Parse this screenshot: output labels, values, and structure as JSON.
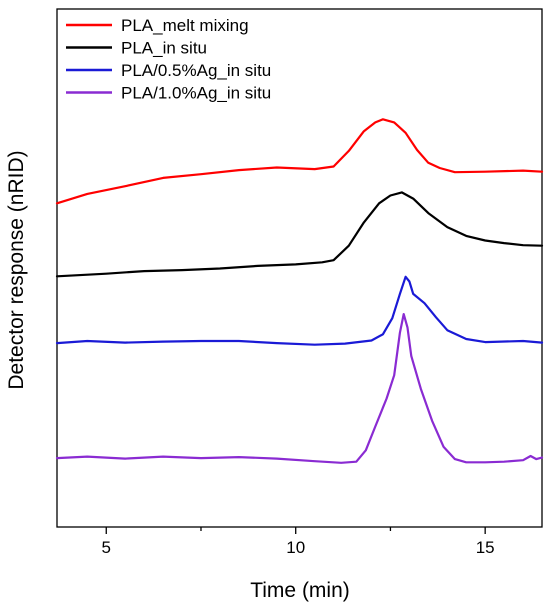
{
  "chart_data": {
    "type": "line",
    "xlabel": "Time (min)",
    "ylabel": "Detector response (nRID)",
    "xlim": [
      3.7,
      16.5
    ],
    "ylim": [
      0,
      100
    ],
    "x_ticks": [
      5,
      10,
      15
    ],
    "x_tick_labels": [
      "5",
      "10",
      "15"
    ],
    "y_ticks_labeled": false,
    "grid": false,
    "legend_position": "top-left",
    "series": [
      {
        "name": "PLA_melt mixing",
        "color": "#ff0000",
        "points": [
          [
            3.7,
            62.5
          ],
          [
            4.5,
            64.3
          ],
          [
            5.5,
            65.8
          ],
          [
            6.5,
            67.4
          ],
          [
            7.5,
            68.1
          ],
          [
            8.5,
            68.9
          ],
          [
            9.5,
            69.4
          ],
          [
            10.5,
            69.1
          ],
          [
            11.0,
            69.6
          ],
          [
            11.4,
            72.6
          ],
          [
            11.8,
            76.4
          ],
          [
            12.1,
            78.1
          ],
          [
            12.3,
            78.7
          ],
          [
            12.6,
            78.1
          ],
          [
            12.9,
            76.1
          ],
          [
            13.2,
            72.8
          ],
          [
            13.5,
            70.3
          ],
          [
            13.8,
            69.3
          ],
          [
            14.2,
            68.5
          ],
          [
            15.0,
            68.6
          ],
          [
            16.0,
            68.8
          ],
          [
            16.5,
            68.6
          ]
        ]
      },
      {
        "name": "PLA_in situ",
        "color": "#000000",
        "points": [
          [
            3.7,
            48.4
          ],
          [
            5.0,
            48.9
          ],
          [
            6.0,
            49.4
          ],
          [
            7.0,
            49.6
          ],
          [
            8.0,
            49.9
          ],
          [
            9.0,
            50.4
          ],
          [
            10.0,
            50.7
          ],
          [
            10.7,
            51.1
          ],
          [
            11.0,
            51.5
          ],
          [
            11.4,
            54.3
          ],
          [
            11.8,
            58.8
          ],
          [
            12.2,
            62.5
          ],
          [
            12.5,
            64.0
          ],
          [
            12.8,
            64.6
          ],
          [
            13.1,
            63.4
          ],
          [
            13.5,
            60.6
          ],
          [
            14.0,
            57.9
          ],
          [
            14.5,
            56.2
          ],
          [
            15.0,
            55.3
          ],
          [
            15.5,
            54.8
          ],
          [
            16.0,
            54.4
          ],
          [
            16.5,
            54.3
          ]
        ]
      },
      {
        "name": "PLA/0.5%Ag_in situ",
        "color": "#1a1ad6",
        "points": [
          [
            3.7,
            35.5
          ],
          [
            4.5,
            35.9
          ],
          [
            5.5,
            35.6
          ],
          [
            6.5,
            35.8
          ],
          [
            7.5,
            35.9
          ],
          [
            8.5,
            35.9
          ],
          [
            9.5,
            35.5
          ],
          [
            10.5,
            35.2
          ],
          [
            11.3,
            35.4
          ],
          [
            12.0,
            36.0
          ],
          [
            12.3,
            37.2
          ],
          [
            12.55,
            40.3
          ],
          [
            12.75,
            45.0
          ],
          [
            12.9,
            48.3
          ],
          [
            13.0,
            47.4
          ],
          [
            13.1,
            45.0
          ],
          [
            13.4,
            43.2
          ],
          [
            13.7,
            40.5
          ],
          [
            14.0,
            38.0
          ],
          [
            14.5,
            36.3
          ],
          [
            15.0,
            35.7
          ],
          [
            16.0,
            35.9
          ],
          [
            16.5,
            35.6
          ]
        ]
      },
      {
        "name": "PLA/1.0%Ag_in situ",
        "color": "#8a2bd2",
        "points": [
          [
            3.7,
            13.3
          ],
          [
            4.5,
            13.6
          ],
          [
            5.5,
            13.2
          ],
          [
            6.5,
            13.6
          ],
          [
            7.5,
            13.3
          ],
          [
            8.5,
            13.5
          ],
          [
            9.5,
            13.2
          ],
          [
            10.5,
            12.7
          ],
          [
            11.2,
            12.4
          ],
          [
            11.6,
            12.6
          ],
          [
            11.85,
            14.8
          ],
          [
            12.1,
            19.4
          ],
          [
            12.4,
            24.8
          ],
          [
            12.6,
            29.3
          ],
          [
            12.75,
            37.5
          ],
          [
            12.85,
            41.1
          ],
          [
            12.95,
            38.5
          ],
          [
            13.05,
            33.0
          ],
          [
            13.3,
            26.7
          ],
          [
            13.6,
            20.5
          ],
          [
            13.9,
            15.5
          ],
          [
            14.2,
            13.1
          ],
          [
            14.5,
            12.5
          ],
          [
            15.0,
            12.5
          ],
          [
            15.5,
            12.6
          ],
          [
            16.0,
            12.9
          ],
          [
            16.2,
            13.7
          ],
          [
            16.35,
            13.1
          ],
          [
            16.5,
            13.4
          ]
        ]
      }
    ]
  }
}
